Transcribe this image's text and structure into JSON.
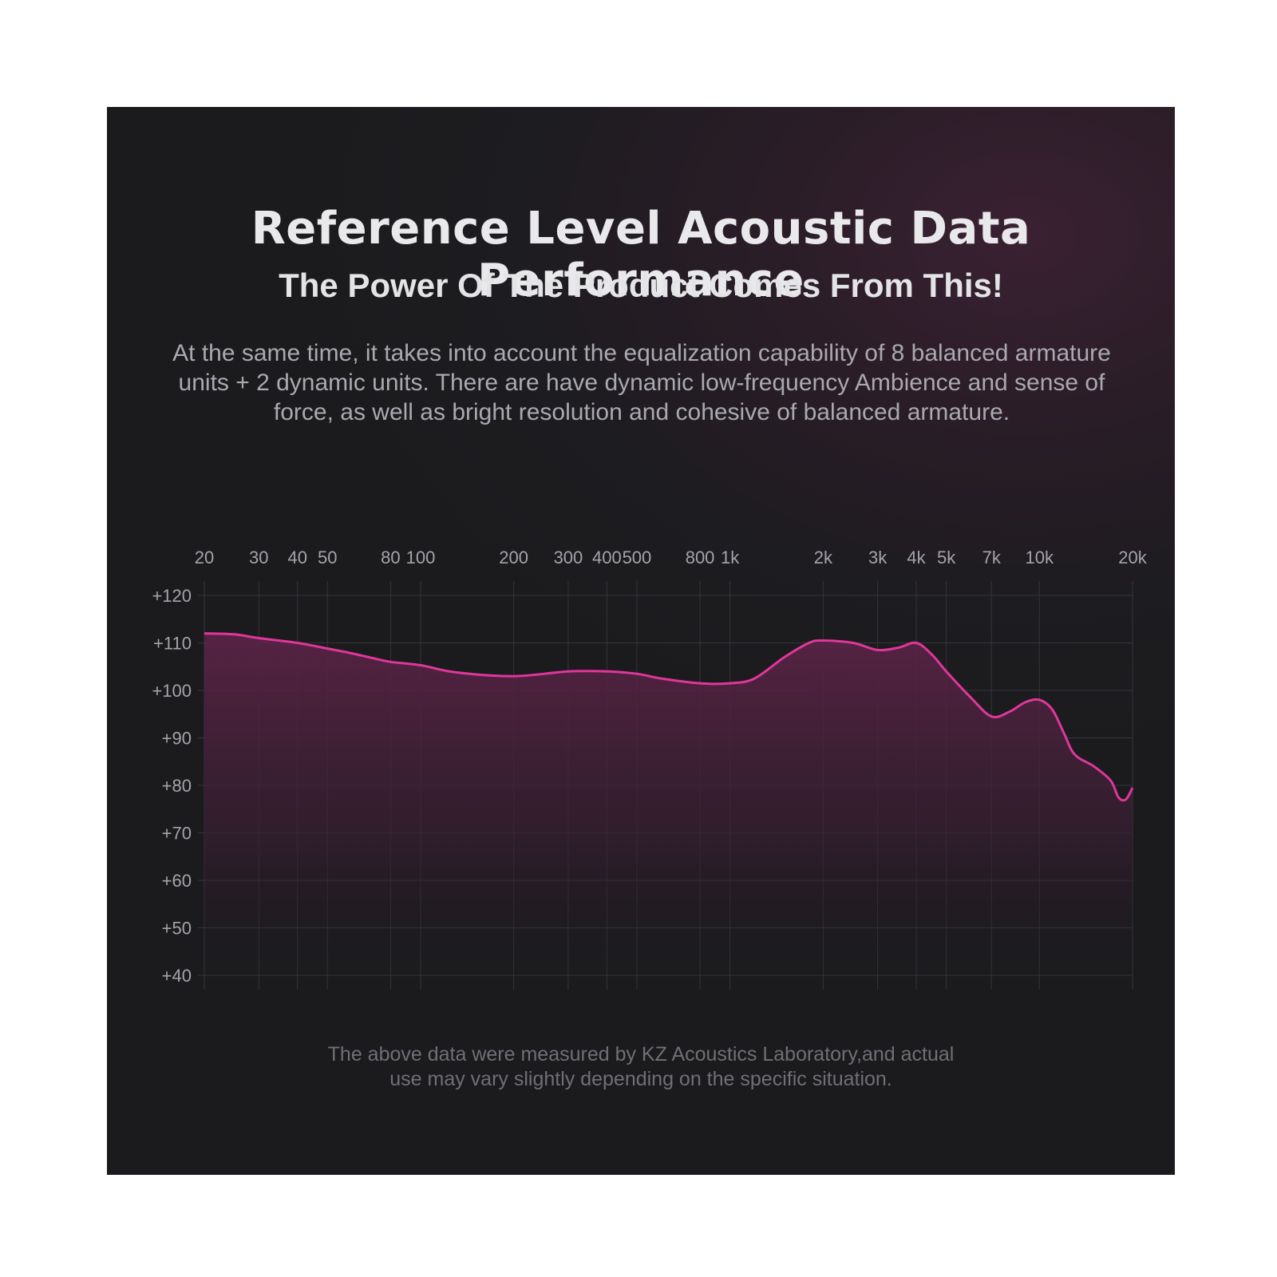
{
  "title": "Reference Level Acoustic Data Performance",
  "subtitle": "The Power Of The Product Comes From This!",
  "description": "At the same time, it takes into account the equalization capability of 8 balanced armature units + 2 dynamic units. There are have dynamic low-frequency Ambience and sense of force, as well as bright resolution and cohesive of balanced armature.",
  "footnote_line1": "The above data were measured by KZ Acoustics Laboratory,and actual",
  "footnote_line2": "use may vary slightly depending on the specific situation.",
  "colors": {
    "curve": "#e0369c",
    "fill": "#5a2346",
    "grid": "#35343a"
  },
  "chart_data": {
    "type": "area",
    "x_scale": "log",
    "xlim": [
      20,
      20000
    ],
    "ylim": [
      40,
      120
    ],
    "x_ticks": [
      {
        "value": 20,
        "label": "20"
      },
      {
        "value": 30,
        "label": "30"
      },
      {
        "value": 40,
        "label": "40"
      },
      {
        "value": 50,
        "label": "50"
      },
      {
        "value": 80,
        "label": "80"
      },
      {
        "value": 100,
        "label": "100"
      },
      {
        "value": 200,
        "label": "200"
      },
      {
        "value": 300,
        "label": "300"
      },
      {
        "value": 400,
        "label": "400"
      },
      {
        "value": 500,
        "label": "500"
      },
      {
        "value": 800,
        "label": "800"
      },
      {
        "value": 1000,
        "label": "1k"
      },
      {
        "value": 2000,
        "label": "2k"
      },
      {
        "value": 3000,
        "label": "3k"
      },
      {
        "value": 4000,
        "label": "4k"
      },
      {
        "value": 5000,
        "label": "5k"
      },
      {
        "value": 7000,
        "label": "7k"
      },
      {
        "value": 10000,
        "label": "10k"
      },
      {
        "value": 20000,
        "label": "20k"
      }
    ],
    "y_ticks": [
      {
        "value": 120,
        "label": "+120"
      },
      {
        "value": 110,
        "label": "+110"
      },
      {
        "value": 100,
        "label": "+100"
      },
      {
        "value": 90,
        "label": "+90"
      },
      {
        "value": 80,
        "label": "+80"
      },
      {
        "value": 70,
        "label": "+70"
      },
      {
        "value": 60,
        "label": "+60"
      },
      {
        "value": 50,
        "label": "+50"
      },
      {
        "value": 40,
        "label": "+40"
      }
    ],
    "grid": true,
    "series": [
      {
        "x": [
          20,
          25,
          30,
          40,
          50,
          60,
          70,
          80,
          100,
          130,
          200,
          300,
          400,
          500,
          600,
          800,
          1000,
          1200,
          1500,
          1800,
          2000,
          2500,
          3000,
          3500,
          4000,
          4500,
          5000,
          6000,
          7000,
          8000,
          9000,
          10000,
          11000,
          12000,
          13000,
          15000,
          17000,
          18000,
          19000,
          20000
        ],
        "y": [
          112,
          111.8,
          111,
          110,
          108.8,
          107.8,
          106.8,
          106,
          105.3,
          103.8,
          103,
          104,
          104,
          103.5,
          102.5,
          101.5,
          101.5,
          102.5,
          107,
          110,
          110.5,
          110,
          108.5,
          109,
          110,
          107.5,
          104,
          98.5,
          94.5,
          95.5,
          97.5,
          98,
          96,
          91,
          86.5,
          84,
          81,
          77.5,
          77,
          79.5
        ]
      }
    ]
  }
}
